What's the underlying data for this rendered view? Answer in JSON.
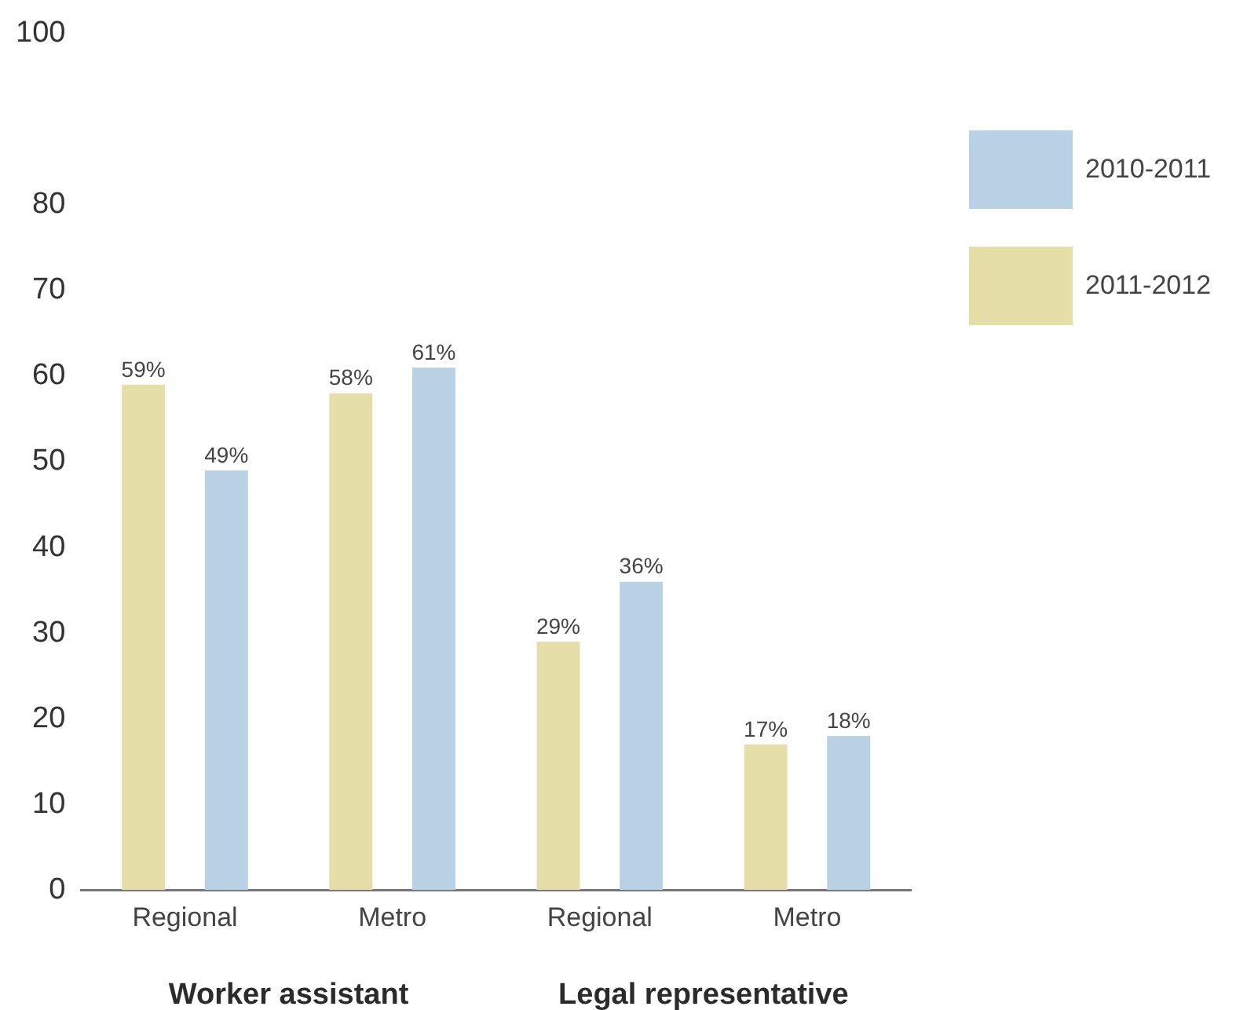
{
  "chart_data": {
    "type": "bar",
    "categories": [
      "Regional",
      "Metro",
      "Regional",
      "Metro"
    ],
    "series": [
      {
        "name": "2011-2012",
        "color": "#e5dea8",
        "values": [
          59,
          58,
          29,
          17
        ],
        "value_labels": [
          "59%",
          "58%",
          "29%",
          "17%"
        ]
      },
      {
        "name": "2010-2011",
        "color": "#b9d1e4",
        "values": [
          49,
          61,
          36,
          18
        ],
        "value_labels": [
          "49%",
          "61%",
          "36%",
          "18%"
        ]
      }
    ],
    "ylim": [
      0,
      100
    ],
    "yticks": [
      0,
      10,
      20,
      30,
      40,
      50,
      60,
      70,
      80,
      100
    ],
    "grid": false,
    "legend": "top right",
    "annotations": [
      "Worker assistant",
      "Legal representative"
    ]
  }
}
